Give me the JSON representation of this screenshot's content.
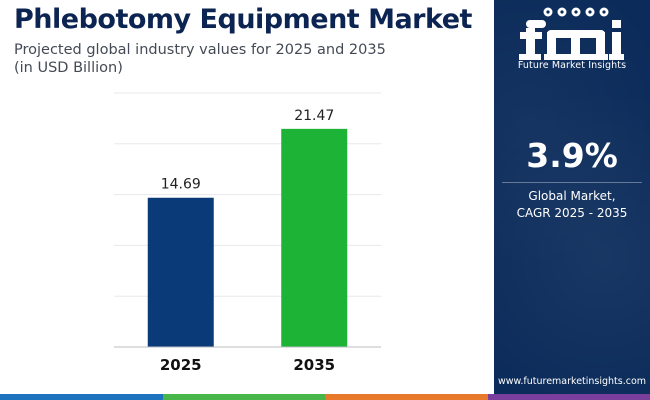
{
  "header": {
    "title": "Phlebotomy Equipment Market",
    "subtitle_line1": "Projected global industry values for 2025 and 2035",
    "subtitle_line2": "(in USD Billion)"
  },
  "chart_data": {
    "type": "bar",
    "categories": [
      "2025",
      "2035"
    ],
    "values": [
      14.69,
      21.47
    ],
    "data_labels": [
      "14.69",
      "21.47"
    ],
    "bar_colors": [
      "#0b3a78",
      "#1db336"
    ],
    "ylim": [
      0,
      25
    ],
    "grid": true,
    "xlabel": "",
    "ylabel": ""
  },
  "side_panel": {
    "logo_letters": "fmi",
    "logo_caption": "Future Market Insights",
    "cagr_value": "3.9%",
    "cagr_label_line1": "Global Market,",
    "cagr_label_line2": "CAGR 2025 - 2035",
    "website": "www.futuremarketinsights.com",
    "background_color": "#0b2b5a"
  },
  "bottom_strip_colors": [
    "#1e73be",
    "#49b649",
    "#e8792b",
    "#7a3e9d"
  ]
}
